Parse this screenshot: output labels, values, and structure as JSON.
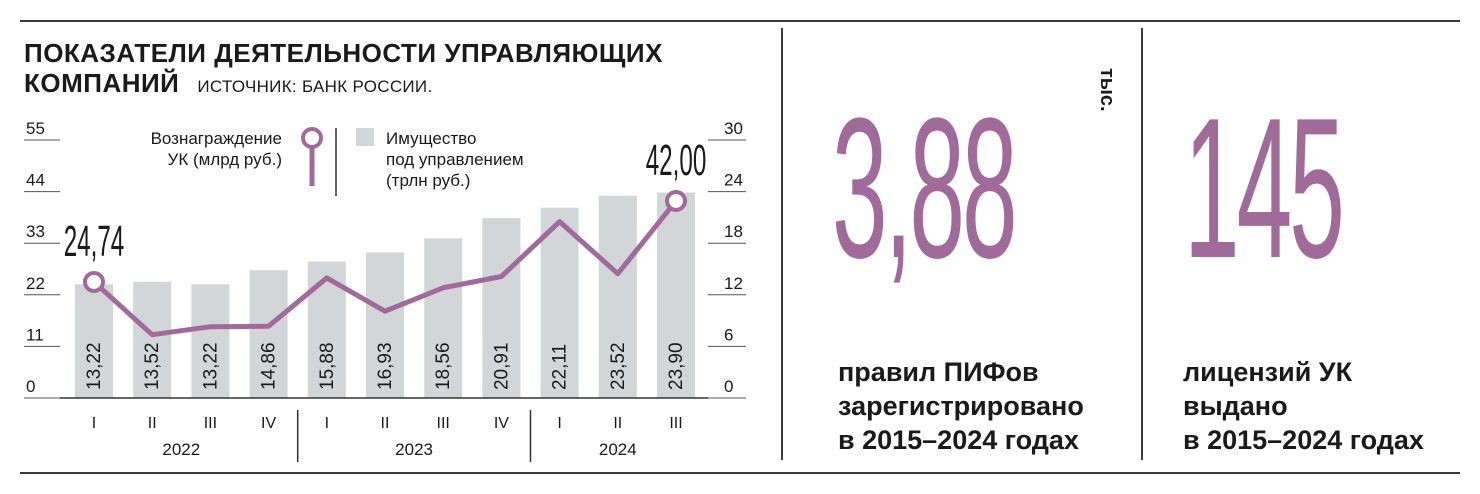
{
  "title": {
    "line1": "ПОКАЗАТЕЛИ ДЕЯТЕЛЬНОСТИ УПРАВЛЯЮЩИХ",
    "line2": "КОМПАНИЙ",
    "source": "ИСТОЧНИК: БАНК РОССИИ."
  },
  "colors": {
    "accent": "#a06a9a",
    "bar": "#d3d6d8",
    "text": "#1a1a1a"
  },
  "chart_data": {
    "type": "bar+line",
    "categories": [
      "I",
      "II",
      "III",
      "IV",
      "I",
      "II",
      "III",
      "IV",
      "I",
      "II",
      "III"
    ],
    "years": [
      {
        "label": "2022",
        "span": 4
      },
      {
        "label": "2023",
        "span": 4
      },
      {
        "label": "2024",
        "span": 3
      }
    ],
    "left_axis": {
      "ticks": [
        "55",
        "44",
        "33",
        "22",
        "11",
        "0"
      ],
      "ylim": [
        0,
        55
      ]
    },
    "right_axis": {
      "ticks": [
        "30",
        "24",
        "18",
        "12",
        "6",
        "0"
      ],
      "ylim": [
        0,
        30
      ]
    },
    "legend": {
      "line": "Вознаграждение УК (млрд руб.)",
      "line_lines": [
        "Вознаграждение",
        "УК (млрд руб.)"
      ],
      "bar": "Имущество под управлением (трлн руб.)",
      "bar_lines": [
        "Имущество",
        "под управлением",
        "(трлн руб.)"
      ]
    },
    "series": [
      {
        "name": "Имущество под управлением (трлн руб.)",
        "type": "bar",
        "axis": "right",
        "values": [
          13.22,
          13.52,
          13.22,
          14.86,
          15.88,
          16.93,
          18.56,
          20.91,
          22.11,
          23.52,
          23.9
        ],
        "labels": [
          "13,22",
          "13,52",
          "13,22",
          "14,86",
          "15,88",
          "16,93",
          "18,56",
          "20,91",
          "22,11",
          "23,52",
          "23,90"
        ]
      },
      {
        "name": "Вознаграждение УК (млрд руб.)",
        "type": "line",
        "axis": "left",
        "values": [
          24.74,
          13.5,
          15.2,
          15.3,
          25.6,
          18.5,
          23.5,
          25.9,
          37.6,
          26.5,
          42.0
        ],
        "annotations": [
          {
            "index": 0,
            "label": "24,74"
          },
          {
            "index": 10,
            "label": "42,00"
          }
        ]
      }
    ]
  },
  "stats": [
    {
      "value": "3,88",
      "unit": "тыс.",
      "lines": [
        "правил ПИФов",
        "зарегистрировано",
        "в 2015–2024 годах"
      ]
    },
    {
      "value": "145",
      "unit": "",
      "lines": [
        "лицензий УК",
        "выдано",
        "в 2015–2024 годах"
      ]
    }
  ]
}
